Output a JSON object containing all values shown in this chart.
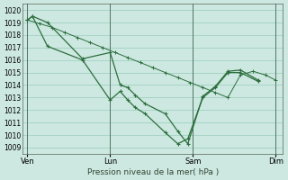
{
  "background_color": "#cce8e0",
  "grid_color": "#99ccbb",
  "line_color": "#2d6e3e",
  "xlabel": "Pression niveau de la mer( hPa )",
  "ylim": [
    1008.5,
    1020.5
  ],
  "yticks": [
    1009,
    1010,
    1011,
    1012,
    1013,
    1014,
    1015,
    1016,
    1017,
    1018,
    1019,
    1020
  ],
  "xtick_labels": [
    "Ven",
    "Lun",
    "Sam",
    "Dim"
  ],
  "xtick_positions": [
    0,
    33,
    66,
    99
  ],
  "vline_positions": [
    0,
    33,
    66,
    99
  ],
  "smooth_x": [
    0,
    5,
    10,
    15,
    20,
    25,
    30,
    35,
    40,
    45,
    50,
    55,
    60,
    65,
    70,
    75,
    80,
    85,
    90,
    95,
    99
  ],
  "smooth_y": [
    1019.2,
    1018.9,
    1018.6,
    1018.2,
    1017.8,
    1017.4,
    1017.0,
    1016.6,
    1016.2,
    1015.8,
    1015.4,
    1015.0,
    1014.6,
    1014.2,
    1013.8,
    1013.4,
    1013.0,
    1014.8,
    1015.1,
    1014.8,
    1014.4
  ],
  "line1_x": [
    0,
    2,
    8,
    22,
    33,
    37,
    40,
    43,
    47,
    55,
    60,
    64,
    70,
    75,
    80,
    85,
    92
  ],
  "line1_y": [
    1019.2,
    1019.5,
    1019.0,
    1016.1,
    1016.6,
    1014.0,
    1013.8,
    1013.2,
    1012.5,
    1011.7,
    1010.3,
    1009.3,
    1013.1,
    1013.9,
    1015.1,
    1015.2,
    1014.4
  ],
  "line2_x": [
    0,
    2,
    8,
    22,
    33,
    37,
    40,
    43,
    47,
    55,
    60,
    64,
    70,
    75,
    80,
    85,
    92
  ],
  "line2_y": [
    1019.2,
    1019.5,
    1017.1,
    1016.0,
    1012.8,
    1013.5,
    1012.8,
    1012.2,
    1011.7,
    1010.2,
    1009.3,
    1009.7,
    1013.0,
    1013.8,
    1015.0,
    1015.0,
    1014.3
  ]
}
